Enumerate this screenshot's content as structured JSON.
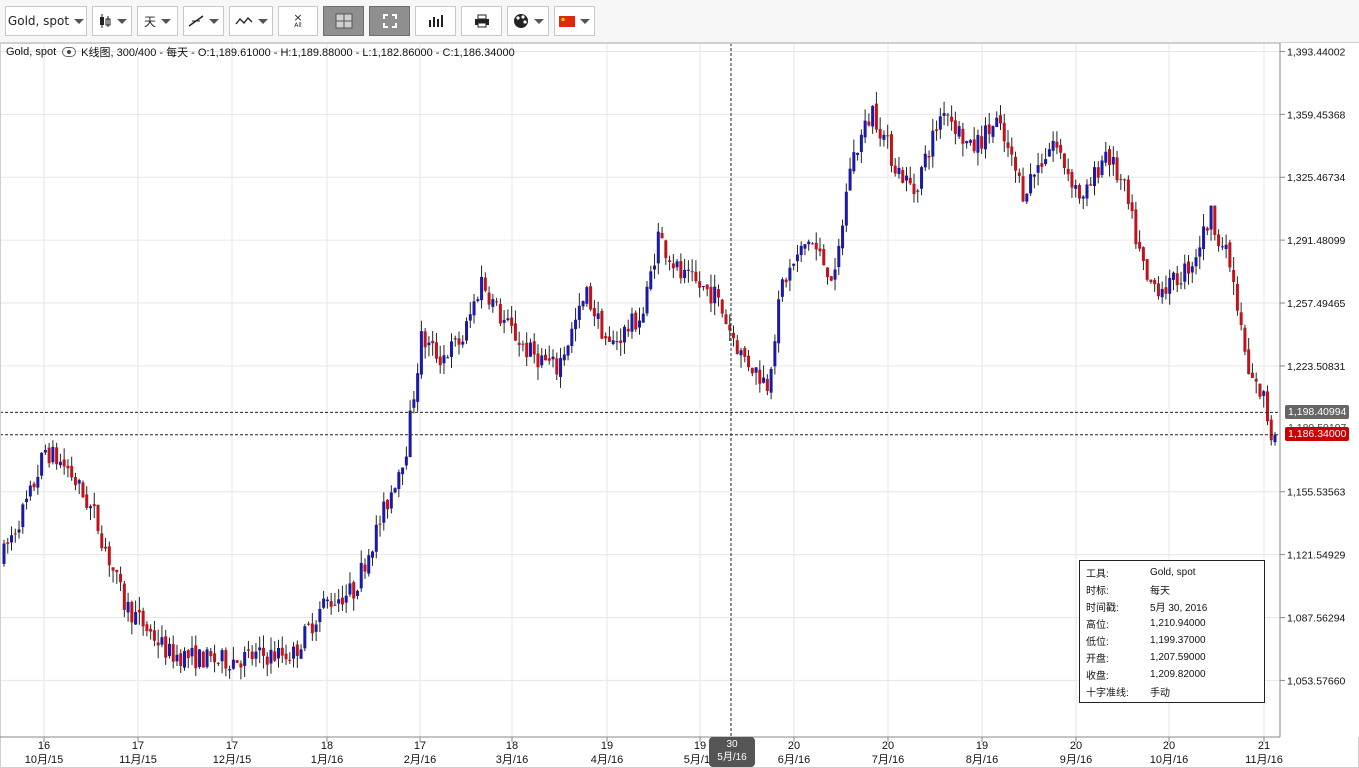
{
  "toolbar": {
    "symbol_label": "Gold, spot",
    "period_label": "天",
    "all_label": "All"
  },
  "legend": {
    "symbol": "Gold, spot",
    "description": "K线图, 300/400 - 每天 - O:1,189.61000 - H:1,189.88000 - L:1,182.86000 - C:1,186.34000"
  },
  "price_tags": {
    "crosshair": "1,198.40994",
    "hidden": "1,189.59197",
    "last": "1,186.34000"
  },
  "crosshair_date": {
    "day": "30",
    "month": "5月/16"
  },
  "info_box": {
    "rows": [
      {
        "k": "工具:",
        "v": "Gold, spot"
      },
      {
        "k": "时标:",
        "v": "每天"
      },
      {
        "k": "时间戳:",
        "v": "5月 30, 2016"
      },
      {
        "k": "高位:",
        "v": "1,210.94000"
      },
      {
        "k": "低位:",
        "v": "1,199.37000"
      },
      {
        "k": "开盘:",
        "v": "1,207.59000"
      },
      {
        "k": "收盘:",
        "v": "1,209.82000"
      },
      {
        "k": "十字准线:",
        "v": "手动"
      }
    ]
  },
  "colors": {
    "up": "#1a1aa6",
    "down": "#c0141a",
    "grid": "#e6e6e6",
    "tag_last": "#cc0000",
    "tag_cross": "#666666"
  },
  "chart_data": {
    "type": "candlestick",
    "instrument": "Gold, spot",
    "timeframe": "每天",
    "ylim": [
      1023.0,
      1398.0
    ],
    "y_ticks": [
      "1,393.44002",
      "1,359.45368",
      "1,325.46734",
      "1,291.48099",
      "1,257.49465",
      "1,223.50831",
      "1,155.53563",
      "1,121.54929",
      "1,087.56294",
      "1,053.57660"
    ],
    "x_ticks": [
      {
        "day": "16",
        "month": "10月/15"
      },
      {
        "day": "17",
        "month": "11月/15"
      },
      {
        "day": "17",
        "month": "12月/15"
      },
      {
        "day": "18",
        "month": "1月/16"
      },
      {
        "day": "17",
        "month": "2月/16"
      },
      {
        "day": "18",
        "month": "3月/16"
      },
      {
        "day": "19",
        "month": "4月/16"
      },
      {
        "day": "19",
        "month": "5月/16"
      },
      {
        "day": "20",
        "month": "6月/16"
      },
      {
        "day": "20",
        "month": "7月/16"
      },
      {
        "day": "19",
        "month": "8月/16"
      },
      {
        "day": "20",
        "month": "9月/16"
      },
      {
        "day": "20",
        "month": "10月/16"
      },
      {
        "day": "21",
        "month": "11月/16"
      }
    ],
    "last_close": 1186.34,
    "crosshair_price": 1198.40994,
    "anchors": [
      [
        0,
        1118
      ],
      [
        8,
        1154
      ],
      [
        12,
        1178
      ],
      [
        18,
        1168
      ],
      [
        25,
        1143
      ],
      [
        33,
        1095
      ],
      [
        45,
        1068
      ],
      [
        58,
        1064
      ],
      [
        70,
        1067
      ],
      [
        78,
        1068
      ],
      [
        86,
        1095
      ],
      [
        94,
        1102
      ],
      [
        103,
        1150
      ],
      [
        108,
        1180
      ],
      [
        112,
        1238
      ],
      [
        117,
        1228
      ],
      [
        123,
        1238
      ],
      [
        128,
        1270
      ],
      [
        133,
        1250
      ],
      [
        140,
        1232
      ],
      [
        148,
        1222
      ],
      [
        156,
        1262
      ],
      [
        162,
        1234
      ],
      [
        171,
        1252
      ],
      [
        175,
        1294
      ],
      [
        181,
        1272
      ],
      [
        190,
        1262
      ],
      [
        197,
        1230
      ],
      [
        204,
        1214
      ],
      [
        208,
        1268
      ],
      [
        215,
        1292
      ],
      [
        222,
        1270
      ],
      [
        226,
        1332
      ],
      [
        232,
        1362
      ],
      [
        238,
        1332
      ],
      [
        243,
        1318
      ],
      [
        251,
        1364
      ],
      [
        258,
        1340
      ],
      [
        265,
        1355
      ],
      [
        272,
        1318
      ],
      [
        280,
        1345
      ],
      [
        288,
        1312
      ],
      [
        294,
        1340
      ],
      [
        299,
        1318
      ],
      [
        305,
        1268
      ],
      [
        311,
        1266
      ],
      [
        317,
        1280
      ],
      [
        322,
        1305
      ],
      [
        327,
        1278
      ],
      [
        332,
        1218
      ],
      [
        336,
        1206
      ],
      [
        338,
        1186
      ]
    ]
  }
}
